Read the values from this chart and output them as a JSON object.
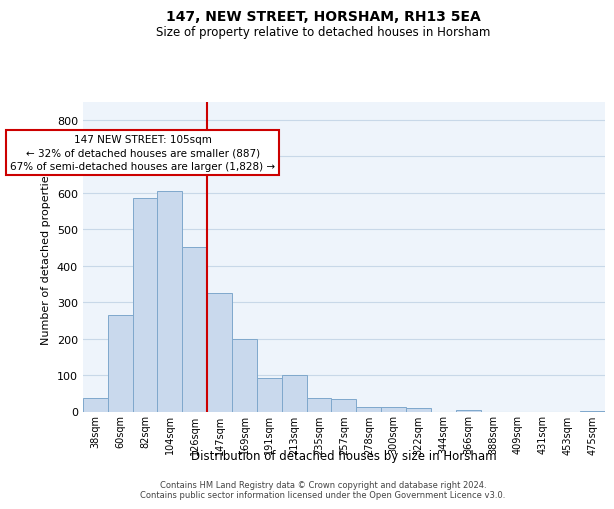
{
  "title": "147, NEW STREET, HORSHAM, RH13 5EA",
  "subtitle": "Size of property relative to detached houses in Horsham",
  "xlabel": "Distribution of detached houses by size in Horsham",
  "ylabel": "Number of detached properties",
  "categories": [
    "38sqm",
    "60sqm",
    "82sqm",
    "104sqm",
    "126sqm",
    "147sqm",
    "169sqm",
    "191sqm",
    "213sqm",
    "235sqm",
    "257sqm",
    "278sqm",
    "300sqm",
    "322sqm",
    "344sqm",
    "366sqm",
    "388sqm",
    "409sqm",
    "431sqm",
    "453sqm",
    "475sqm"
  ],
  "values": [
    38,
    265,
    585,
    605,
    450,
    325,
    200,
    92,
    100,
    38,
    35,
    12,
    12,
    10,
    0,
    5,
    0,
    0,
    0,
    0,
    2
  ],
  "bar_color": "#c9d9ed",
  "bar_edge_color": "#7fa8cc",
  "highlight_bar_index": 5,
  "annotation_box_text": "147 NEW STREET: 105sqm\n← 32% of detached houses are smaller (887)\n67% of semi-detached houses are larger (1,828) →",
  "red_line_color": "#cc0000",
  "box_edge_color": "#cc0000",
  "ylim": [
    0,
    850
  ],
  "yticks": [
    0,
    100,
    200,
    300,
    400,
    500,
    600,
    700,
    800
  ],
  "grid_color": "#c8d8e8",
  "background_color": "#eef4fb",
  "footer_line1": "Contains HM Land Registry data © Crown copyright and database right 2024.",
  "footer_line2": "Contains public sector information licensed under the Open Government Licence v3.0."
}
